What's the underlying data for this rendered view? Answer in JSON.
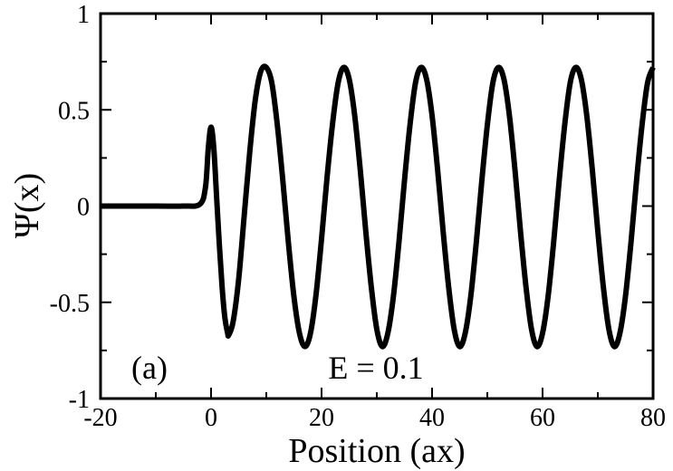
{
  "chart_data": {
    "type": "line",
    "title": "",
    "xlabel": "Position (ax)",
    "ylabel": "Ψ(x)",
    "xlim": [
      -20,
      80
    ],
    "ylim": [
      -1,
      1
    ],
    "x_ticks": [
      -20,
      0,
      20,
      40,
      60,
      80
    ],
    "x_tick_labels": [
      "-20",
      "0",
      "20",
      "40",
      "60",
      "80"
    ],
    "y_ticks": [
      -1,
      -0.5,
      0,
      0.5,
      1
    ],
    "y_tick_labels": [
      "-1",
      "-0.5",
      "0",
      "0.5",
      "1"
    ],
    "grid": false,
    "legend": "none",
    "annotations": [
      {
        "text": "(a)",
        "x": -13,
        "y": -0.82
      },
      {
        "text": "E = 0.1",
        "x": 27,
        "y": -0.82
      }
    ],
    "series": [
      {
        "color": "#000000",
        "x": [
          -20,
          -10,
          -5,
          -2,
          -1,
          -0.5,
          0,
          0.5,
          1,
          1.5,
          2,
          2.5,
          3,
          3.2,
          4,
          5,
          6,
          7,
          8,
          9,
          10,
          11,
          12,
          13,
          14,
          15,
          16,
          17,
          18,
          19,
          20,
          21,
          22,
          23,
          24,
          25,
          26,
          27,
          28,
          29,
          30,
          31,
          32,
          33,
          34,
          35,
          36,
          37,
          38,
          39,
          40,
          41,
          42,
          43,
          44,
          45,
          46,
          47,
          48,
          49,
          50,
          51,
          52,
          53,
          54,
          55,
          56,
          57,
          58,
          59,
          60,
          61,
          62,
          63,
          64,
          65,
          66,
          67,
          68,
          69,
          70,
          71,
          72,
          73,
          74,
          75,
          76,
          77,
          78,
          79,
          80
        ],
        "y": [
          0,
          0,
          0,
          0.01,
          0.1,
          0.3,
          0.41,
          0.3,
          0.05,
          -0.2,
          -0.42,
          -0.58,
          -0.66,
          -0.67,
          -0.6,
          -0.38,
          -0.05,
          0.28,
          0.55,
          0.7,
          0.72,
          0.64,
          0.42,
          0.13,
          -0.19,
          -0.47,
          -0.66,
          -0.73,
          -0.66,
          -0.46,
          -0.17,
          0.15,
          0.43,
          0.64,
          0.72,
          0.66,
          0.47,
          0.19,
          -0.13,
          -0.42,
          -0.64,
          -0.73,
          -0.66,
          -0.47,
          -0.19,
          0.13,
          0.42,
          0.64,
          0.72,
          0.66,
          0.47,
          0.19,
          -0.13,
          -0.42,
          -0.64,
          -0.73,
          -0.66,
          -0.47,
          -0.19,
          0.13,
          0.42,
          0.64,
          0.72,
          0.66,
          0.47,
          0.19,
          -0.13,
          -0.42,
          -0.64,
          -0.73,
          -0.66,
          -0.47,
          -0.19,
          0.13,
          0.42,
          0.64,
          0.72,
          0.66,
          0.47,
          0.19,
          -0.13,
          -0.42,
          -0.64,
          -0.73,
          -0.66,
          -0.47,
          -0.19,
          0.13,
          0.42,
          0.64,
          0.72
        ]
      }
    ]
  }
}
